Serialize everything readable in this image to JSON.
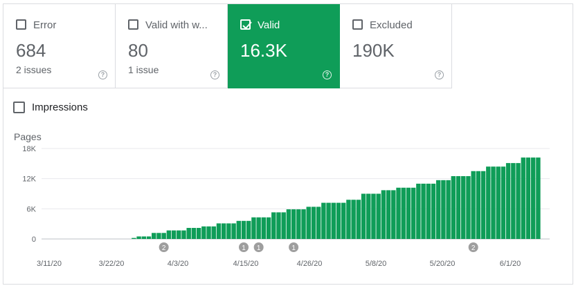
{
  "tiles": [
    {
      "label": "Error",
      "value": "684",
      "sub": "2 issues",
      "selected": false
    },
    {
      "label": "Valid with w...",
      "value": "80",
      "sub": "1 issue",
      "selected": false
    },
    {
      "label": "Valid",
      "value": "16.3K",
      "sub": "",
      "selected": true
    },
    {
      "label": "Excluded",
      "value": "190K",
      "sub": "",
      "selected": false
    }
  ],
  "help_glyph": "?",
  "impressions_label": "Impressions",
  "colors": {
    "accent": "#0f9d58",
    "bar": "#0f9d58",
    "grid": "#e8eaed",
    "annotation": "#9e9e9e"
  },
  "chart_data": {
    "type": "bar",
    "ylabel": "Pages",
    "ylim": [
      0,
      18000
    ],
    "y_ticks": [
      {
        "value": 0,
        "label": "0"
      },
      {
        "value": 6000,
        "label": "6K"
      },
      {
        "value": 12000,
        "label": "12K"
      },
      {
        "value": 18000,
        "label": "18K"
      }
    ],
    "x_ticks": [
      "3/11/20",
      "3/22/20",
      "4/3/20",
      "4/15/20",
      "4/26/20",
      "5/8/20",
      "5/20/20",
      "6/1/20"
    ],
    "values": [
      0,
      0,
      0,
      0,
      0,
      0,
      0,
      0,
      0,
      0,
      0,
      0,
      0,
      0,
      0,
      0,
      0,
      0,
      200,
      500,
      500,
      500,
      1200,
      1200,
      1200,
      1700,
      1700,
      1700,
      1700,
      2200,
      2200,
      2200,
      2500,
      2500,
      2500,
      3100,
      3100,
      3100,
      3100,
      3600,
      3600,
      3600,
      4300,
      4300,
      4300,
      4300,
      5300,
      5300,
      5300,
      5900,
      5900,
      5900,
      5900,
      6400,
      6400,
      6400,
      7200,
      7200,
      7200,
      7200,
      7200,
      7800,
      7800,
      7800,
      9000,
      9000,
      9000,
      9000,
      9700,
      9700,
      9700,
      10200,
      10200,
      10200,
      10200,
      11000,
      11000,
      11000,
      11000,
      11700,
      11700,
      11700,
      12500,
      12500,
      12500,
      12500,
      13500,
      13500,
      13500,
      14400,
      14400,
      14400,
      14400,
      15100,
      15100,
      15100,
      16200,
      16200,
      16200,
      16200
    ],
    "annotations": [
      {
        "label": "2",
        "bar_index": 24
      },
      {
        "label": "1",
        "bar_index": 40
      },
      {
        "label": "1",
        "bar_index": 43
      },
      {
        "label": "1",
        "bar_index": 50
      },
      {
        "label": "2",
        "bar_index": 86
      }
    ]
  }
}
